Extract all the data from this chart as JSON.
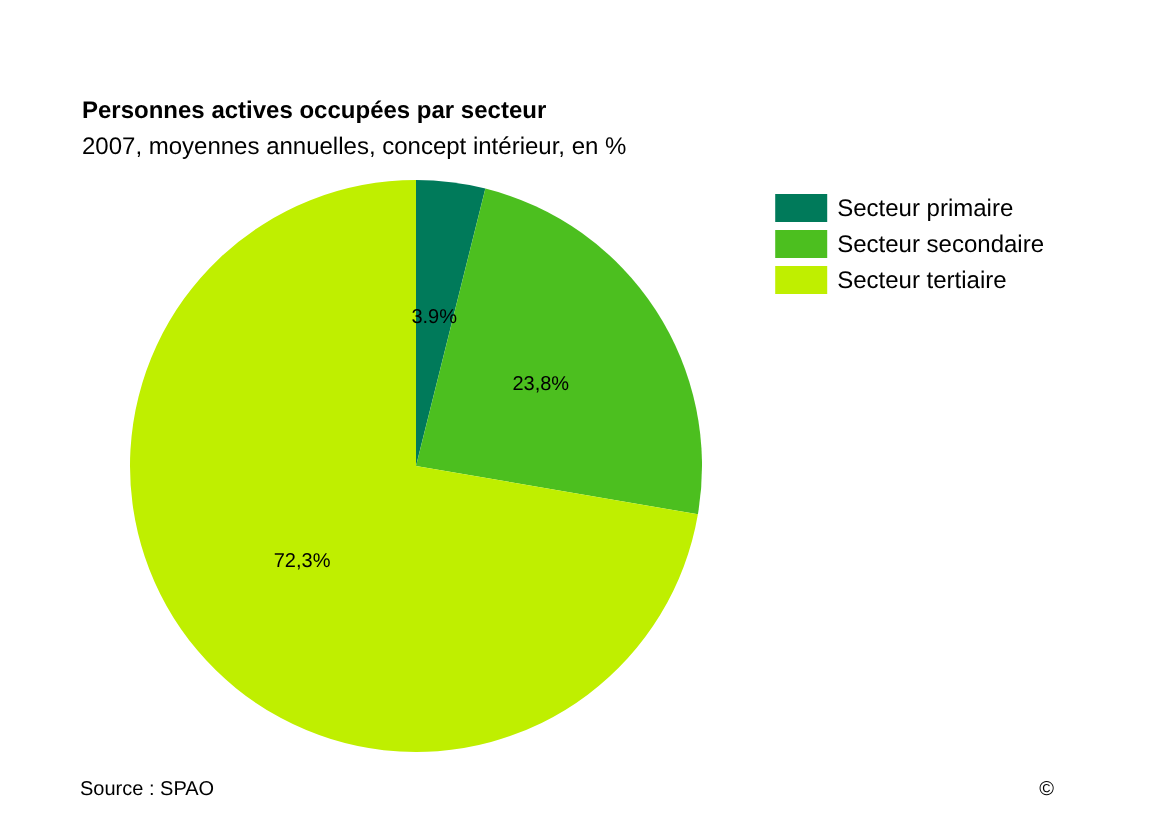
{
  "chart_data": {
    "type": "pie",
    "title": "Personnes actives occupées par secteur",
    "subtitle": "2007, moyennes annuelles, concept intérieur, en %",
    "categories": [
      "Secteur primaire",
      "Secteur secondaire",
      "Secteur tertiaire"
    ],
    "values": [
      3.9,
      23.8,
      72.3
    ],
    "value_labels": [
      "3.9%",
      "23,8%",
      "72,3%"
    ],
    "colors": [
      "#007a5a",
      "#4cbf1f",
      "#bfef00"
    ],
    "legend": "top right",
    "annotations": [
      "Source : SPAO",
      "©"
    ]
  }
}
